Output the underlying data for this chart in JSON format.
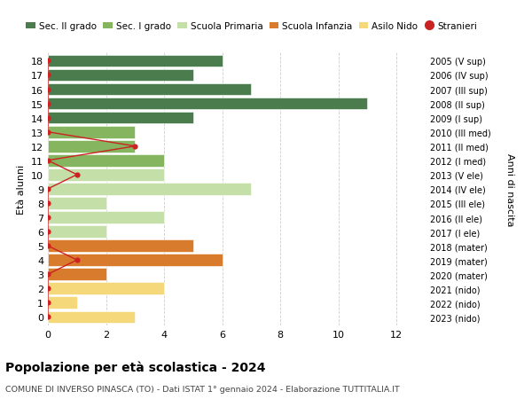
{
  "ages": [
    18,
    17,
    16,
    15,
    14,
    13,
    12,
    11,
    10,
    9,
    8,
    7,
    6,
    5,
    4,
    3,
    2,
    1,
    0
  ],
  "anni_nascita": [
    "2005 (V sup)",
    "2006 (IV sup)",
    "2007 (III sup)",
    "2008 (II sup)",
    "2009 (I sup)",
    "2010 (III med)",
    "2011 (II med)",
    "2012 (I med)",
    "2013 (V ele)",
    "2014 (IV ele)",
    "2015 (III ele)",
    "2016 (II ele)",
    "2017 (I ele)",
    "2018 (mater)",
    "2019 (mater)",
    "2020 (mater)",
    "2021 (nido)",
    "2022 (nido)",
    "2023 (nido)"
  ],
  "bar_values": [
    6,
    5,
    7,
    11,
    5,
    3,
    3,
    4,
    4,
    7,
    2,
    4,
    2,
    5,
    6,
    2,
    4,
    1,
    3
  ],
  "bar_colors": [
    "#4a7c4e",
    "#4a7c4e",
    "#4a7c4e",
    "#4a7c4e",
    "#4a7c4e",
    "#86b55f",
    "#86b55f",
    "#86b55f",
    "#c5dfa8",
    "#c5dfa8",
    "#c5dfa8",
    "#c5dfa8",
    "#c5dfa8",
    "#d97b2c",
    "#d97b2c",
    "#d97b2c",
    "#f5d87a",
    "#f5d87a",
    "#f5d87a"
  ],
  "stranieri_values": [
    0,
    0,
    0,
    0,
    0,
    0,
    3,
    0,
    1,
    0,
    0,
    0,
    0,
    0,
    1,
    0,
    0,
    0,
    0
  ],
  "stranieri_color": "#cc2222",
  "legend_labels": [
    "Sec. II grado",
    "Sec. I grado",
    "Scuola Primaria",
    "Scuola Infanzia",
    "Asilo Nido",
    "Stranieri"
  ],
  "legend_colors": [
    "#4a7c4e",
    "#86b55f",
    "#c5dfa8",
    "#d97b2c",
    "#f5d87a",
    "#cc2222"
  ],
  "ylabel": "Età alunni",
  "y2label": "Anni di nascita",
  "title": "Popolazione per età scolastica - 2024",
  "subtitle": "COMUNE DI INVERSO PINASCA (TO) - Dati ISTAT 1° gennaio 2024 - Elaborazione TUTTITALIA.IT",
  "xlim": [
    0,
    13
  ],
  "xticks": [
    0,
    2,
    4,
    6,
    8,
    10,
    12
  ],
  "ylim": [
    -0.6,
    18.6
  ],
  "bg_color": "#ffffff",
  "grid_color": "#cccccc",
  "bar_height": 0.85
}
